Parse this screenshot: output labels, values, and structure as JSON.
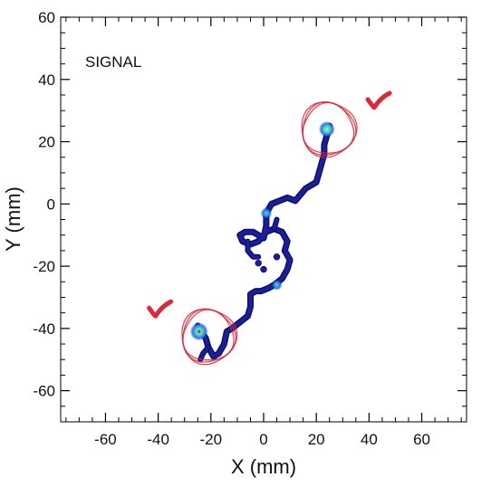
{
  "chart_data": {
    "type": "heatmap",
    "annotation": "SIGNAL",
    "xlabel": "X (mm)",
    "ylabel": "Y (mm)",
    "xlim": [
      -77,
      77
    ],
    "ylim": [
      -70,
      60
    ],
    "xticks": [
      -60,
      -40,
      -20,
      0,
      20,
      40,
      60
    ],
    "yticks": [
      -60,
      -40,
      -20,
      0,
      20,
      40,
      60
    ],
    "track": [
      [
        -24,
        -41
      ],
      [
        -22,
        -43
      ],
      [
        -21,
        -46
      ],
      [
        -19,
        -49
      ],
      [
        -17,
        -48
      ],
      [
        -15,
        -45
      ],
      [
        -14,
        -41
      ],
      [
        -12,
        -40
      ],
      [
        -9,
        -38
      ],
      [
        -6,
        -36
      ],
      [
        -5,
        -33
      ],
      [
        -5,
        -29
      ],
      [
        -3,
        -28
      ],
      [
        -1,
        -28
      ],
      [
        2,
        -27
      ],
      [
        4,
        -26
      ],
      [
        7,
        -24
      ],
      [
        9,
        -21
      ],
      [
        10,
        -18
      ],
      [
        8,
        -15
      ],
      [
        9,
        -12
      ],
      [
        7,
        -9
      ],
      [
        4,
        -8
      ],
      [
        1,
        -9
      ],
      [
        -2,
        -12
      ],
      [
        -5,
        -13
      ],
      [
        -8,
        -12
      ],
      [
        -9,
        -10
      ],
      [
        -7,
        -9
      ],
      [
        -4,
        -9
      ],
      [
        0,
        -11
      ],
      [
        1,
        -7
      ],
      [
        1,
        -3
      ],
      [
        3,
        0
      ],
      [
        6,
        1
      ],
      [
        9,
        2
      ],
      [
        12,
        1
      ],
      [
        14,
        3
      ],
      [
        16,
        5
      ],
      [
        18,
        6
      ],
      [
        20,
        7
      ],
      [
        21,
        10
      ],
      [
        22,
        13
      ],
      [
        23,
        16
      ],
      [
        23,
        19
      ],
      [
        24,
        22
      ],
      [
        25,
        25
      ]
    ],
    "spurs": [
      [
        [
          -24,
          -41
        ],
        [
          -26,
          -41
        ],
        [
          -25,
          -39
        ]
      ],
      [
        [
          -21,
          -46
        ],
        [
          -23,
          -48
        ],
        [
          -24,
          -50
        ]
      ],
      [
        [
          -6,
          -12
        ],
        [
          -6,
          -15
        ],
        [
          -4,
          -17
        ],
        [
          -2,
          -17
        ]
      ],
      [
        [
          4,
          -8
        ],
        [
          5,
          -5
        ]
      ]
    ],
    "dots": [
      [
        -2,
        -19
      ],
      [
        0,
        -21
      ],
      [
        5,
        -26
      ],
      [
        5,
        -17
      ],
      [
        1,
        -4
      ]
    ],
    "hotspots": [
      {
        "x": -24.5,
        "y": -41,
        "intensity": 1.0
      },
      {
        "x": 24,
        "y": 24,
        "intensity": 0.8
      },
      {
        "x": 1,
        "y": -3,
        "intensity": 0.4
      },
      {
        "x": 5,
        "y": -26,
        "intensity": 0.35
      }
    ],
    "circles": [
      {
        "x": -21,
        "y": -42.5,
        "r": 10
      },
      {
        "x": 24.5,
        "y": 24,
        "r": 10
      }
    ],
    "check_marks": [
      {
        "x": -40,
        "y": -34
      },
      {
        "x": 43,
        "y": 33
      }
    ],
    "colors": {
      "track": "#1b1f9c",
      "track_edge": "#0c0f6b",
      "hot": "#e8e33a",
      "warm": "#3fe0d8",
      "mid": "#2a7cf0",
      "annotation_red": "#dd2838"
    }
  }
}
